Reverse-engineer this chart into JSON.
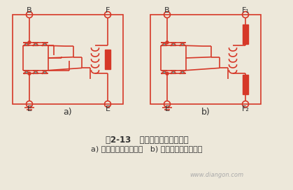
{
  "bg_color": "#ede8da",
  "line_color": "#d63828",
  "diode_fill": "#50c0b8",
  "text_color": "#333333",
  "title_line1": "图2-13   交流发电机的搭铁型式",
  "title_line2": "a) 内搭铁型交流发电机   b) 外搭铁型交流发电机",
  "watermark": "www.diangon.com",
  "label_a": "a)",
  "label_b": "b)",
  "label_Ba": "B",
  "label_Fa": "F",
  "label_E1a": "E",
  "label_E2a": "E",
  "label_Bb": "B",
  "label_F1b": "F₁",
  "label_Eb": "E",
  "label_F2b": "F₂"
}
